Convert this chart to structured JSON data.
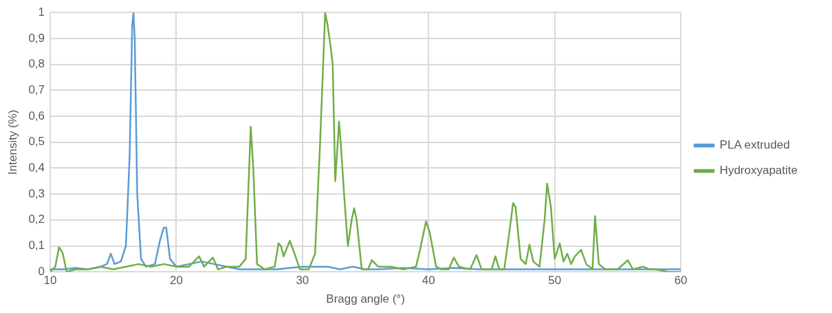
{
  "chart_data": {
    "type": "line",
    "xlabel": "Bragg angle (°)",
    "ylabel": "Intensity (%)",
    "xlim": [
      10,
      60
    ],
    "ylim": [
      0,
      1
    ],
    "xticks": [
      10,
      20,
      30,
      40,
      50,
      60
    ],
    "yticks": [
      0,
      {
        "value": 0.1,
        "label": "0,1"
      },
      {
        "value": 0.2,
        "label": "0,2"
      },
      {
        "value": 0.3,
        "label": "0,3"
      },
      {
        "value": 0.4,
        "label": "0,4"
      },
      {
        "value": 0.5,
        "label": "0,5"
      },
      {
        "value": 0.6,
        "label": "0,6"
      },
      {
        "value": 0.7,
        "label": "0,7"
      },
      {
        "value": 0.8,
        "label": "0,8"
      },
      {
        "value": 0.9,
        "label": "0,9"
      },
      1
    ],
    "grid": true,
    "legend": "right",
    "marker": "none",
    "line_style": "solid",
    "series": [
      {
        "name": "PLA extruded",
        "color": "#5b9bd5",
        "x": [
          10,
          11,
          12,
          13,
          14,
          14.5,
          14.8,
          15.1,
          15.6,
          16.0,
          16.3,
          16.5,
          16.6,
          16.7,
          16.9,
          17.2,
          17.6,
          18.3,
          18.7,
          19.0,
          19.2,
          19.5,
          20.0,
          21,
          22,
          23,
          24,
          25,
          26,
          27,
          28,
          29,
          30,
          31,
          32,
          33,
          34,
          35,
          36,
          38,
          40,
          42,
          44,
          46,
          48,
          50,
          52,
          54,
          56,
          58,
          60
        ],
        "values": [
          0.01,
          0.01,
          0.015,
          0.01,
          0.02,
          0.03,
          0.07,
          0.03,
          0.04,
          0.1,
          0.45,
          0.95,
          1,
          0.9,
          0.3,
          0.05,
          0.02,
          0.03,
          0.12,
          0.17,
          0.17,
          0.05,
          0.02,
          0.03,
          0.04,
          0.03,
          0.02,
          0.01,
          0.01,
          0.01,
          0.01,
          0.015,
          0.02,
          0.02,
          0.02,
          0.01,
          0.02,
          0.01,
          0.01,
          0.015,
          0.01,
          0.015,
          0.01,
          0.01,
          0.01,
          0.01,
          0.01,
          0.01,
          0.01,
          0.01,
          0.01
        ]
      },
      {
        "name": "Hydroxyapatite",
        "color": "#70ad47",
        "x": [
          10,
          10.4,
          10.7,
          10.9,
          11.0,
          11.3,
          12,
          13,
          14,
          15,
          16,
          17,
          18,
          19,
          20,
          21,
          21.8,
          22.2,
          22.9,
          23.3,
          24,
          25,
          25.5,
          25.9,
          26.1,
          26.4,
          27,
          27.8,
          28.1,
          28.3,
          28.5,
          29.0,
          29.3,
          29.8,
          30.5,
          31.0,
          31.4,
          31.8,
          32.0,
          32.2,
          32.4,
          32.6,
          32.9,
          33.0,
          33.1,
          33.3,
          33.6,
          33.9,
          34.1,
          34.3,
          34.7,
          35.2,
          35.5,
          36,
          37,
          38,
          39,
          39.3,
          39.8,
          40.1,
          40.6,
          41,
          41.6,
          42.0,
          42.4,
          43.3,
          43.8,
          44.2,
          45,
          45.3,
          45.6,
          46,
          46.4,
          46.7,
          46.9,
          47.3,
          47.7,
          48.0,
          48.3,
          48.8,
          49.2,
          49.4,
          49.7,
          50,
          50.4,
          50.7,
          51.0,
          51.3,
          51.6,
          52.1,
          52.5,
          53.0,
          53.2,
          53.5,
          54,
          55,
          55.8,
          56.2,
          57.0,
          57.5,
          58,
          59,
          60
        ],
        "values": [
          0.0,
          0.02,
          0.095,
          0.08,
          0.07,
          0.0,
          0.01,
          0.01,
          0.02,
          0.01,
          0.02,
          0.03,
          0.02,
          0.03,
          0.02,
          0.02,
          0.06,
          0.02,
          0.055,
          0.01,
          0.02,
          0.02,
          0.05,
          0.56,
          0.4,
          0.03,
          0.01,
          0.02,
          0.11,
          0.1,
          0.06,
          0.12,
          0.08,
          0.01,
          0.01,
          0.07,
          0.5,
          1,
          0.95,
          0.88,
          0.8,
          0.35,
          0.58,
          0.52,
          0.45,
          0.3,
          0.1,
          0.2,
          0.245,
          0.2,
          0.01,
          0.01,
          0.045,
          0.02,
          0.02,
          0.01,
          0.02,
          0.08,
          0.195,
          0.15,
          0.02,
          0.01,
          0.01,
          0.055,
          0.02,
          0.01,
          0.065,
          0.01,
          0.01,
          0.06,
          0.01,
          0.01,
          0.15,
          0.265,
          0.25,
          0.05,
          0.03,
          0.105,
          0.04,
          0.02,
          0.2,
          0.34,
          0.25,
          0.05,
          0.11,
          0.04,
          0.07,
          0.03,
          0.06,
          0.085,
          0.03,
          0.01,
          0.215,
          0.03,
          0.01,
          0.01,
          0.045,
          0.01,
          0.02,
          0.01,
          0.01,
          0,
          0
        ]
      }
    ]
  }
}
